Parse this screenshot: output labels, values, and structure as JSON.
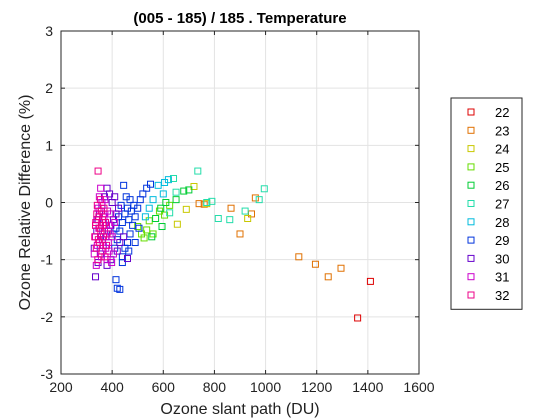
{
  "chart_data": {
    "type": "scatter",
    "title": "(005 - 185) / 185 . Temperature",
    "xlabel": "Ozone slant path (DU)",
    "ylabel": "Ozone Relative Difference (%)",
    "xlim": [
      200,
      1600
    ],
    "ylim": [
      -3,
      3
    ],
    "x_ticks": [
      "200",
      "400",
      "600",
      "800",
      "1000",
      "1200",
      "1400",
      "1600"
    ],
    "y_ticks": [
      "-3",
      "-2",
      "-1",
      "0",
      "1",
      "2",
      "3"
    ],
    "grid": true,
    "marker": "open-square",
    "legend_position": "right",
    "series": [
      {
        "name": "22",
        "color": "#dd0000",
        "points": [
          [
            1360,
            -2.02
          ],
          [
            1410,
            -1.38
          ]
        ]
      },
      {
        "name": "23",
        "color": "#e07000",
        "points": [
          [
            1130,
            -0.95
          ],
          [
            1195,
            -1.08
          ],
          [
            1245,
            -1.3
          ],
          [
            1295,
            -1.15
          ],
          [
            960,
            0.08
          ],
          [
            945,
            -0.2
          ],
          [
            900,
            -0.55
          ],
          [
            865,
            -0.1
          ],
          [
            760,
            -0.03
          ],
          [
            740,
            -0.02
          ]
        ]
      },
      {
        "name": "24",
        "color": "#c8c800",
        "points": [
          [
            690,
            -0.12
          ],
          [
            655,
            -0.38
          ],
          [
            720,
            0.28
          ],
          [
            770,
            -0.02
          ],
          [
            930,
            -0.28
          ]
        ]
      },
      {
        "name": "25",
        "color": "#66dd00",
        "points": [
          [
            625,
            -0.05
          ],
          [
            605,
            -0.22
          ],
          [
            585,
            -0.15
          ],
          [
            560,
            -0.55
          ],
          [
            545,
            -0.32
          ],
          [
            535,
            -0.48
          ],
          [
            525,
            -0.62
          ],
          [
            515,
            -0.55
          ],
          [
            500,
            -0.42
          ]
        ]
      },
      {
        "name": "26",
        "color": "#00cc33",
        "points": [
          [
            650,
            0.05
          ],
          [
            680,
            0.2
          ],
          [
            700,
            0.22
          ],
          [
            610,
            0.0
          ],
          [
            590,
            -0.1
          ],
          [
            570,
            -0.28
          ],
          [
            555,
            -0.6
          ],
          [
            595,
            -0.42
          ]
        ]
      },
      {
        "name": "27",
        "color": "#22ddaa",
        "points": [
          [
            735,
            0.55
          ],
          [
            790,
            0.02
          ],
          [
            770,
            0.0
          ],
          [
            815,
            -0.28
          ],
          [
            860,
            -0.3
          ],
          [
            920,
            -0.15
          ],
          [
            995,
            0.24
          ],
          [
            975,
            0.05
          ],
          [
            625,
            -0.18
          ],
          [
            650,
            0.18
          ],
          [
            640,
            0.42
          ]
        ]
      },
      {
        "name": "28",
        "color": "#00bbdd",
        "points": [
          [
            580,
            0.3
          ],
          [
            600,
            0.15
          ],
          [
            560,
            0.05
          ],
          [
            545,
            -0.1
          ],
          [
            530,
            -0.25
          ],
          [
            620,
            0.4
          ],
          [
            605,
            0.35
          ]
        ]
      },
      {
        "name": "29",
        "color": "#0033dd",
        "points": [
          [
            415,
            -1.35
          ],
          [
            420,
            -1.5
          ],
          [
            430,
            -1.52
          ],
          [
            440,
            -0.95
          ],
          [
            450,
            -0.8
          ],
          [
            460,
            -0.7
          ],
          [
            470,
            -0.55
          ],
          [
            480,
            -0.4
          ],
          [
            490,
            -0.25
          ],
          [
            500,
            -0.1
          ],
          [
            510,
            0.05
          ],
          [
            520,
            0.15
          ],
          [
            535,
            0.25
          ],
          [
            550,
            0.32
          ],
          [
            450,
            -0.2
          ],
          [
            460,
            -0.1
          ],
          [
            470,
            0.05
          ],
          [
            440,
            -0.35
          ],
          [
            430,
            -0.5
          ],
          [
            420,
            -0.65
          ],
          [
            410,
            -0.8
          ],
          [
            445,
            0.3
          ],
          [
            455,
            0.1
          ],
          [
            465,
            -0.3
          ],
          [
            475,
            -0.15
          ],
          [
            485,
            -0.05
          ],
          [
            425,
            -0.25
          ],
          [
            435,
            -0.05
          ],
          [
            415,
            -0.45
          ],
          [
            400,
            -0.55
          ],
          [
            490,
            -0.7
          ],
          [
            505,
            -0.45
          ],
          [
            465,
            -0.85
          ],
          [
            440,
            -1.05
          ]
        ]
      },
      {
        "name": "30",
        "color": "#6600cc",
        "points": [
          [
            335,
            -1.3
          ],
          [
            345,
            -1.05
          ],
          [
            355,
            -0.9
          ],
          [
            365,
            -0.75
          ],
          [
            375,
            -0.6
          ],
          [
            385,
            -0.5
          ],
          [
            395,
            -0.4
          ],
          [
            405,
            -0.3
          ],
          [
            415,
            -0.2
          ],
          [
            425,
            -0.1
          ],
          [
            350,
            -0.2
          ],
          [
            360,
            -0.05
          ],
          [
            370,
            0.1
          ],
          [
            380,
            0.25
          ],
          [
            390,
            0.15
          ],
          [
            400,
            0.0
          ],
          [
            410,
            0.1
          ],
          [
            340,
            -0.5
          ],
          [
            330,
            -0.8
          ],
          [
            445,
            -0.6
          ],
          [
            460,
            -0.98
          ],
          [
            395,
            -1.0
          ],
          [
            380,
            -1.1
          ],
          [
            420,
            -0.85
          ],
          [
            430,
            -0.7
          ],
          [
            365,
            -0.35
          ],
          [
            355,
            -0.6
          ],
          [
            345,
            -0.3
          ]
        ]
      },
      {
        "name": "31",
        "color": "#cc00cc",
        "points": [
          [
            330,
            -0.9
          ],
          [
            335,
            -0.6
          ],
          [
            340,
            -0.3
          ],
          [
            345,
            -0.1
          ],
          [
            350,
            0.1
          ],
          [
            355,
            0.25
          ],
          [
            360,
            0.0
          ],
          [
            365,
            -0.2
          ],
          [
            370,
            -0.5
          ],
          [
            375,
            -0.8
          ],
          [
            380,
            -1.0
          ],
          [
            385,
            -0.7
          ],
          [
            390,
            -0.4
          ],
          [
            395,
            -0.2
          ],
          [
            400,
            -0.6
          ],
          [
            405,
            -0.9
          ],
          [
            410,
            -0.35
          ],
          [
            338,
            -1.1
          ],
          [
            342,
            -0.75
          ],
          [
            348,
            -0.45
          ],
          [
            352,
            -0.15
          ],
          [
            358,
            -0.95
          ],
          [
            362,
            -0.65
          ],
          [
            368,
            -0.25
          ],
          [
            372,
            0.05
          ],
          [
            378,
            -0.4
          ],
          [
            382,
            -0.15
          ],
          [
            388,
            -0.85
          ],
          [
            392,
            -0.55
          ],
          [
            398,
            -1.05
          ]
        ]
      },
      {
        "name": "32",
        "color": "#ee0088",
        "points": [
          [
            345,
            0.55
          ],
          [
            340,
            -0.2
          ],
          [
            335,
            -0.4
          ],
          [
            332,
            -0.6
          ],
          [
            338,
            -0.8
          ],
          [
            344,
            -1.0
          ],
          [
            350,
            -0.7
          ],
          [
            356,
            -0.5
          ],
          [
            362,
            -0.3
          ],
          [
            368,
            -0.1
          ],
          [
            374,
            -0.35
          ],
          [
            380,
            -0.55
          ],
          [
            348,
            -0.25
          ],
          [
            354,
            0.05
          ],
          [
            360,
            -0.85
          ],
          [
            366,
            -0.6
          ],
          [
            372,
            -0.95
          ],
          [
            378,
            -0.75
          ],
          [
            352,
            -0.45
          ],
          [
            346,
            -0.65
          ],
          [
            342,
            -0.05
          ],
          [
            336,
            -0.35
          ],
          [
            358,
            -0.15
          ],
          [
            364,
            -0.4
          ]
        ]
      }
    ]
  }
}
